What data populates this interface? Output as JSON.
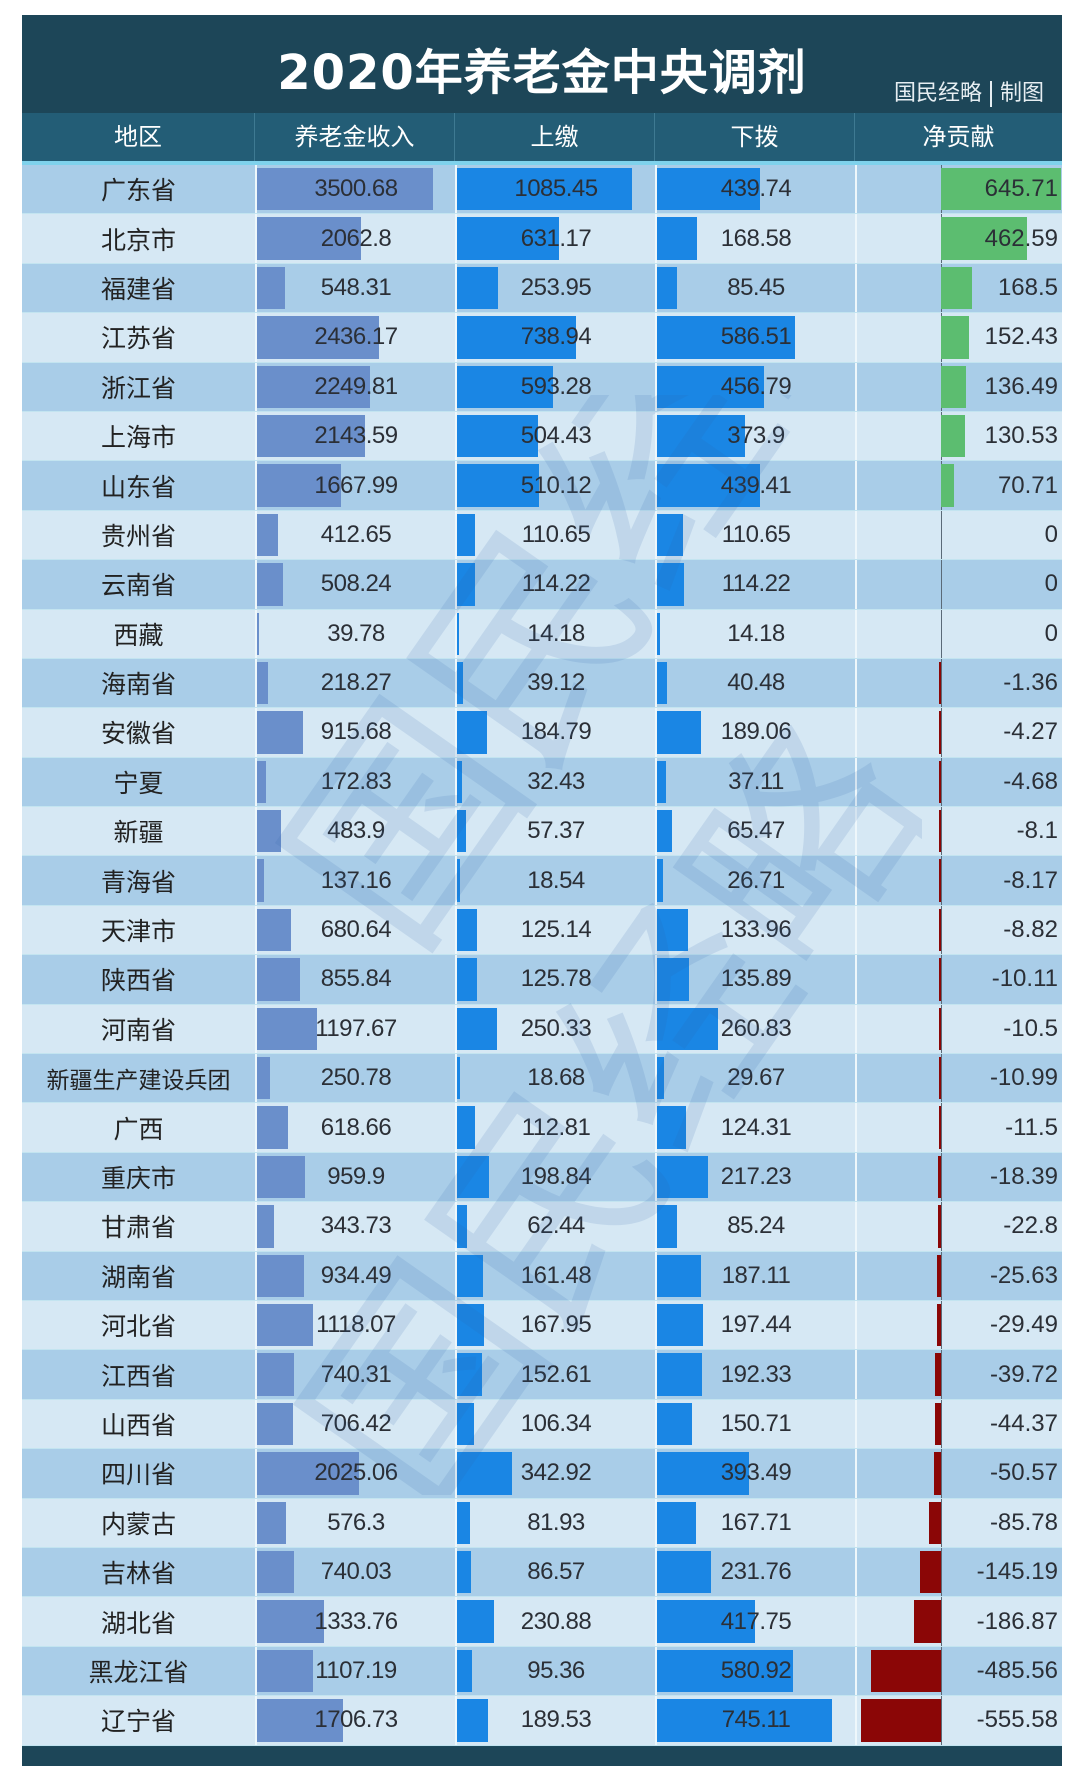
{
  "title": "2020年养老金中央调剂",
  "credit": {
    "source": "国民经略",
    "suffix": "制图"
  },
  "columns": [
    "地区",
    "养老金收入",
    "上缴",
    "下拨",
    "净贡献"
  ],
  "colors": {
    "header_bg": "#235d76",
    "title_bg": "#1d4658",
    "income_bar": "#6a8fcb",
    "up_down_bar": "#1a86e4",
    "net_positive": "#5cbd70",
    "net_negative": "#8b0606",
    "row_odd": "#a9cde8",
    "row_even": "#d6e8f4"
  },
  "rows": [
    {
      "region": "广东省",
      "income": "3500.68",
      "up": "1085.45",
      "down": "439.74",
      "net": "645.71"
    },
    {
      "region": "北京市",
      "income": "2062.8",
      "up": "631.17",
      "down": "168.58",
      "net": "462.59"
    },
    {
      "region": "福建省",
      "income": "548.31",
      "up": "253.95",
      "down": "85.45",
      "net": "168.5"
    },
    {
      "region": "江苏省",
      "income": "2436.17",
      "up": "738.94",
      "down": "586.51",
      "net": "152.43"
    },
    {
      "region": "浙江省",
      "income": "2249.81",
      "up": "593.28",
      "down": "456.79",
      "net": "136.49"
    },
    {
      "region": "上海市",
      "income": "2143.59",
      "up": "504.43",
      "down": "373.9",
      "net": "130.53"
    },
    {
      "region": "山东省",
      "income": "1667.99",
      "up": "510.12",
      "down": "439.41",
      "net": "70.71"
    },
    {
      "region": "贵州省",
      "income": "412.65",
      "up": "110.65",
      "down": "110.65",
      "net": "0"
    },
    {
      "region": "云南省",
      "income": "508.24",
      "up": "114.22",
      "down": "114.22",
      "net": "0"
    },
    {
      "region": "西藏",
      "income": "39.78",
      "up": "14.18",
      "down": "14.18",
      "net": "0"
    },
    {
      "region": "海南省",
      "income": "218.27",
      "up": "39.12",
      "down": "40.48",
      "net": "-1.36"
    },
    {
      "region": "安徽省",
      "income": "915.68",
      "up": "184.79",
      "down": "189.06",
      "net": "-4.27"
    },
    {
      "region": "宁夏",
      "income": "172.83",
      "up": "32.43",
      "down": "37.11",
      "net": "-4.68"
    },
    {
      "region": "新疆",
      "income": "483.9",
      "up": "57.37",
      "down": "65.47",
      "net": "-8.1"
    },
    {
      "region": "青海省",
      "income": "137.16",
      "up": "18.54",
      "down": "26.71",
      "net": "-8.17"
    },
    {
      "region": "天津市",
      "income": "680.64",
      "up": "125.14",
      "down": "133.96",
      "net": "-8.82"
    },
    {
      "region": "陕西省",
      "income": "855.84",
      "up": "125.78",
      "down": "135.89",
      "net": "-10.11"
    },
    {
      "region": "河南省",
      "income": "1197.67",
      "up": "250.33",
      "down": "260.83",
      "net": "-10.5"
    },
    {
      "region": "新疆生产建设兵团",
      "income": "250.78",
      "up": "18.68",
      "down": "29.67",
      "net": "-10.99"
    },
    {
      "region": "广西",
      "income": "618.66",
      "up": "112.81",
      "down": "124.31",
      "net": "-11.5"
    },
    {
      "region": "重庆市",
      "income": "959.9",
      "up": "198.84",
      "down": "217.23",
      "net": "-18.39"
    },
    {
      "region": "甘肃省",
      "income": "343.73",
      "up": "62.44",
      "down": "85.24",
      "net": "-22.8"
    },
    {
      "region": "湖南省",
      "income": "934.49",
      "up": "161.48",
      "down": "187.11",
      "net": "-25.63"
    },
    {
      "region": "河北省",
      "income": "1118.07",
      "up": "167.95",
      "down": "197.44",
      "net": "-29.49"
    },
    {
      "region": "江西省",
      "income": "740.31",
      "up": "152.61",
      "down": "192.33",
      "net": "-39.72"
    },
    {
      "region": "山西省",
      "income": "706.42",
      "up": "106.34",
      "down": "150.71",
      "net": "-44.37"
    },
    {
      "region": "四川省",
      "income": "2025.06",
      "up": "342.92",
      "down": "393.49",
      "net": "-50.57"
    },
    {
      "region": "内蒙古",
      "income": "576.3",
      "up": "81.93",
      "down": "167.71",
      "net": "-85.78"
    },
    {
      "region": "吉林省",
      "income": "740.03",
      "up": "86.57",
      "down": "231.76",
      "net": "-145.19"
    },
    {
      "region": "湖北省",
      "income": "1333.76",
      "up": "230.88",
      "down": "417.75",
      "net": "-186.87"
    },
    {
      "region": "黑龙江省",
      "income": "1107.19",
      "up": "95.36",
      "down": "580.92",
      "net": "-485.56"
    },
    {
      "region": "辽宁省",
      "income": "1706.73",
      "up": "189.53",
      "down": "745.11",
      "net": "-555.58"
    }
  ],
  "chart_data": {
    "type": "table",
    "title": "2020年养老金中央调剂",
    "subtitle": "国民经略 | 制图",
    "categories": [
      "广东省",
      "北京市",
      "福建省",
      "江苏省",
      "浙江省",
      "上海市",
      "山东省",
      "贵州省",
      "云南省",
      "西藏",
      "海南省",
      "安徽省",
      "宁夏",
      "新疆",
      "青海省",
      "天津市",
      "陕西省",
      "河南省",
      "新疆生产建设兵团",
      "广西",
      "重庆市",
      "甘肃省",
      "湖南省",
      "河北省",
      "江西省",
      "山西省",
      "四川省",
      "内蒙古",
      "吉林省",
      "湖北省",
      "黑龙江省",
      "辽宁省"
    ],
    "series": [
      {
        "name": "养老金收入",
        "values": [
          3500.68,
          2062.8,
          548.31,
          2436.17,
          2249.81,
          2143.59,
          1667.99,
          412.65,
          508.24,
          39.78,
          218.27,
          915.68,
          172.83,
          483.9,
          137.16,
          680.64,
          855.84,
          1197.67,
          250.78,
          618.66,
          959.9,
          343.73,
          934.49,
          1118.07,
          740.31,
          706.42,
          2025.06,
          576.3,
          740.03,
          1333.76,
          1107.19,
          1706.73
        ]
      },
      {
        "name": "上缴",
        "values": [
          1085.45,
          631.17,
          253.95,
          738.94,
          593.28,
          504.43,
          510.12,
          110.65,
          114.22,
          14.18,
          39.12,
          184.79,
          32.43,
          57.37,
          18.54,
          125.14,
          125.78,
          250.33,
          18.68,
          112.81,
          198.84,
          62.44,
          161.48,
          167.95,
          152.61,
          106.34,
          342.92,
          81.93,
          86.57,
          230.88,
          95.36,
          189.53
        ]
      },
      {
        "name": "下拨",
        "values": [
          439.74,
          168.58,
          85.45,
          586.51,
          456.79,
          373.9,
          439.41,
          110.65,
          114.22,
          14.18,
          40.48,
          189.06,
          37.11,
          65.47,
          26.71,
          133.96,
          135.89,
          260.83,
          29.67,
          124.31,
          217.23,
          85.24,
          187.11,
          197.44,
          192.33,
          150.71,
          393.49,
          167.71,
          231.76,
          417.75,
          580.92,
          745.11
        ]
      },
      {
        "name": "净贡献",
        "values": [
          645.71,
          462.59,
          168.5,
          152.43,
          136.49,
          130.53,
          70.71,
          0,
          0,
          0,
          -1.36,
          -4.27,
          -4.68,
          -8.1,
          -8.17,
          -8.82,
          -10.11,
          -10.5,
          -10.99,
          -11.5,
          -18.39,
          -22.8,
          -25.63,
          -29.49,
          -39.72,
          -44.37,
          -50.57,
          -85.78,
          -145.19,
          -186.87,
          -485.56,
          -555.58
        ]
      }
    ],
    "xlabel": "",
    "ylabel": "",
    "legend": "none"
  }
}
